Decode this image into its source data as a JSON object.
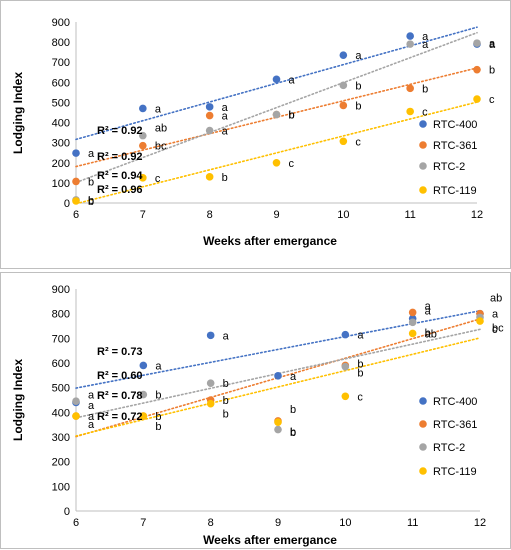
{
  "chart_data": [
    {
      "type": "scatter",
      "title": "",
      "xlabel": "Weeks after emergance",
      "ylabel": "Lodging Index",
      "xlim": [
        6,
        12
      ],
      "ylim": [
        0,
        900
      ],
      "x_ticks": [
        "6",
        "7",
        "8",
        "9",
        "10",
        "11",
        "12"
      ],
      "y_ticks": [
        "0",
        "100",
        "200",
        "300",
        "400",
        "500",
        "600",
        "700",
        "800",
        "900"
      ],
      "grid": false,
      "legend_position": "right",
      "trendline": "linear, dotted",
      "series": [
        {
          "name": "RTC-400",
          "color": "#4472C4",
          "r2_label": "R² = 0.92",
          "x": [
            6,
            7,
            8,
            9,
            10,
            11,
            12
          ],
          "y": [
            248,
            470,
            478,
            615,
            735,
            830,
            790
          ],
          "letters": [
            "a",
            "a",
            "a",
            "a",
            "a",
            "a",
            "a"
          ]
        },
        {
          "name": "RTC-361",
          "color": "#ED7D31",
          "r2_label": "R² = 0.92",
          "x": [
            6,
            7,
            8,
            9,
            10,
            11,
            12
          ],
          "y": [
            107,
            285,
            435,
            440,
            485,
            570,
            663
          ],
          "letters": [
            "b",
            "bc",
            "a",
            "b",
            "b",
            "b",
            "b"
          ]
        },
        {
          "name": "RTC-2",
          "color": "#A5A5A5",
          "r2_label": "R² = 0.94",
          "x": [
            6,
            7,
            8,
            9,
            10,
            11,
            12
          ],
          "y": [
            15,
            335,
            360,
            440,
            585,
            790,
            795
          ],
          "letters": [
            "b",
            "ab",
            "a",
            "b",
            "b",
            "a",
            "a"
          ]
        },
        {
          "name": "RTC-119",
          "color": "#FFC000",
          "r2_label": "R² = 0.96",
          "x": [
            6,
            7,
            8,
            9,
            10,
            11,
            12
          ],
          "y": [
            10,
            125,
            130,
            200,
            307,
            455,
            517
          ],
          "letters": [
            "b",
            "c",
            "b",
            "c",
            "c",
            "c",
            "c"
          ]
        }
      ]
    },
    {
      "type": "scatter",
      "title": "",
      "xlabel": "Weeks after emergance",
      "ylabel": "Lodging Index",
      "xlim": [
        6,
        12
      ],
      "ylim": [
        0,
        900
      ],
      "x_ticks": [
        "6",
        "7",
        "8",
        "9",
        "10",
        "11",
        "12"
      ],
      "y_ticks": [
        "0",
        "100",
        "200",
        "300",
        "400",
        "500",
        "600",
        "700",
        "800",
        "900"
      ],
      "grid": false,
      "legend_position": "right",
      "trendline": "linear, dotted",
      "series": [
        {
          "name": "RTC-400",
          "color": "#4472C4",
          "r2_label": "R² = 0.73",
          "x": [
            6,
            7,
            8,
            9,
            10,
            11,
            12
          ],
          "y": [
            440,
            590,
            712,
            548,
            715,
            780,
            800
          ],
          "letters": [
            "a",
            "a",
            "a",
            "a",
            "a",
            "a",
            "ab"
          ]
        },
        {
          "name": "RTC-361",
          "color": "#ED7D31",
          "r2_label": "R² = 0.60",
          "x": [
            6,
            7,
            8,
            9,
            10,
            11,
            12
          ],
          "y": [
            385,
            385,
            450,
            365,
            590,
            805,
            800
          ],
          "letters": [
            "a",
            "b",
            "b",
            "b",
            "b",
            "a",
            "a"
          ]
        },
        {
          "name": "RTC-2",
          "color": "#A5A5A5",
          "r2_label": "R² = 0.78",
          "x": [
            6,
            7,
            8,
            9,
            10,
            11,
            12
          ],
          "y": [
            445,
            472,
            518,
            330,
            585,
            765,
            785
          ],
          "letters": [
            "a",
            "b",
            "b",
            "b",
            "b",
            "b",
            "bc"
          ]
        },
        {
          "name": "RTC-119",
          "color": "#FFC000",
          "r2_label": "R² = 0.72",
          "x": [
            6,
            7,
            8,
            9,
            10,
            11,
            12
          ],
          "y": [
            385,
            385,
            435,
            360,
            465,
            720,
            770
          ],
          "letters": [
            "a",
            "b",
            "b",
            "b",
            "c",
            "ab",
            "c"
          ]
        }
      ]
    }
  ]
}
